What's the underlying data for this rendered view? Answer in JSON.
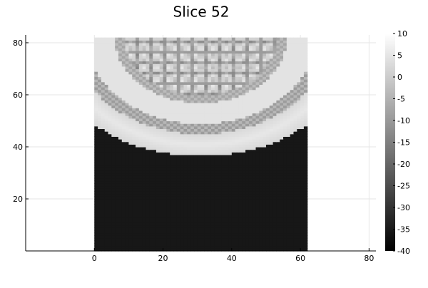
{
  "chart_data": {
    "type": "heatmap",
    "title": "Slice 52",
    "xlabel": "",
    "ylabel": "",
    "xlim": [
      -20,
      82
    ],
    "ylim": [
      0,
      83
    ],
    "xticks": [
      0,
      20,
      40,
      60,
      80
    ],
    "yticks": [
      20,
      40,
      60,
      80
    ],
    "colorbar": {
      "min": -40,
      "max": 10,
      "ticks": [
        10,
        5,
        0,
        -5,
        -10,
        -15,
        -20,
        -25,
        -30,
        -35,
        -40
      ],
      "colormap": "grays"
    },
    "grid": true,
    "heatmap_grid": {
      "columns": 62,
      "rows": 82,
      "x_range": [
        0,
        62
      ],
      "y_range": [
        0,
        82
      ],
      "background_value": -38,
      "structure": "semicircular bright rim (radius about 45) centered near x=31, y=82 on a dark background; values range from about -40 to 10"
    }
  },
  "colors": {
    "background": "#ffffff",
    "grid": "#e6e6e6",
    "axis": "#000000"
  }
}
